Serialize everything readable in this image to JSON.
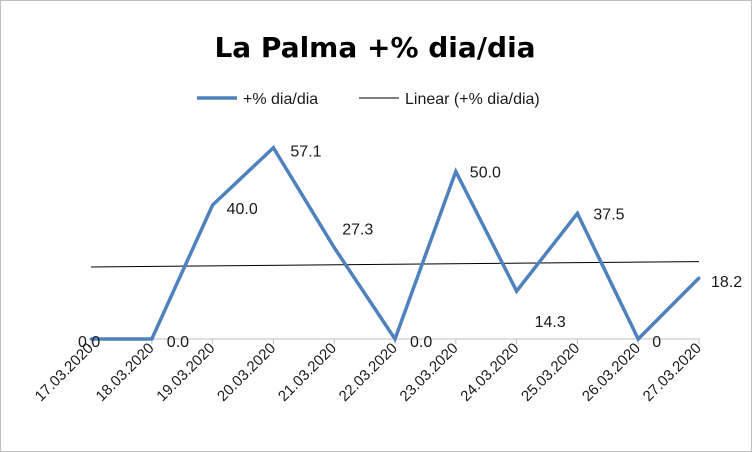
{
  "chart_data": {
    "type": "line",
    "title": "La Palma +% dia/dia",
    "categories": [
      "17.03.2020",
      "18.03.2020",
      "19.03.2020",
      "20.03.2020",
      "21.03.2020",
      "22.03.2020",
      "23.03.2020",
      "24.03.2020",
      "25.03.2020",
      "26.03.2020",
      "27.03.2020"
    ],
    "series": [
      {
        "name": "+% dia/dia",
        "values": [
          0.0,
          0.0,
          40.0,
          57.1,
          27.3,
          0.0,
          50.0,
          14.3,
          37.5,
          0,
          18.2
        ],
        "labels": [
          "0.0",
          "0.0",
          "40.0",
          "57.1",
          "27.3",
          "0.0",
          "50.0",
          "14.3",
          "37.5",
          "0",
          "18.2"
        ],
        "color": "#4f81bd"
      }
    ],
    "trendline": {
      "name": "Linear (+% dia/dia)",
      "start": 21.5,
      "end": 23.1,
      "color": "#000000"
    },
    "legend": "top",
    "ylim": [
      0,
      65
    ],
    "grid": false
  }
}
